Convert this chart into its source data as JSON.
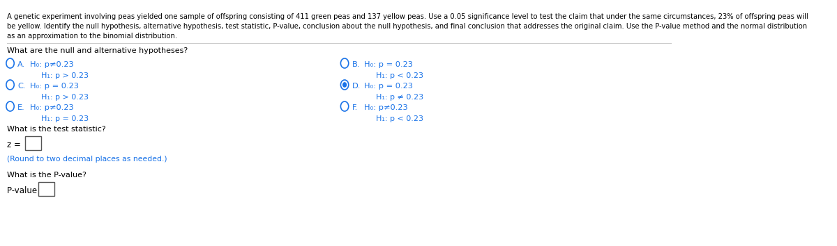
{
  "bg_color": "#ffffff",
  "text_color": "#000000",
  "blue_color": "#1a73e8",
  "paragraph": "A genetic experiment involving peas yielded one sample of offspring consisting of 411 green peas and 137 yellow peas. Use a 0.05 significance level to test the claim that under the same circumstances, 23% of offspring peas will\nbe yellow. Identify the null hypothesis, alternative hypothesis, test statistic, P-value, conclusion about the null hypothesis, and final conclusion that addresses the original claim. Use the P-value method and the normal distribution\nas an approximation to the binomial distribution.",
  "question1": "What are the null and alternative hypotheses?",
  "options": [
    {
      "label": "A.",
      "h0": "H₀: p≠0.23",
      "h1": "H₁: p > 0.23",
      "selected": false
    },
    {
      "label": "B.",
      "h0": "H₀: p = 0.23",
      "h1": "H₁: p < 0.23",
      "selected": false
    },
    {
      "label": "C.",
      "h0": "H₀: p = 0.23",
      "h1": "H₁: p > 0.23",
      "selected": false
    },
    {
      "label": "D.",
      "h0": "H₀: p = 0.23",
      "h1": "H₁: p ≠ 0.23",
      "selected": true
    },
    {
      "label": "E.",
      "h0": "H₀: p≠0.23",
      "h1": "H₁: p = 0.23",
      "selected": false
    },
    {
      "label": "F.",
      "h0": "H₀: p≠0.23",
      "h1": "H₁: p < 0.23",
      "selected": false
    }
  ],
  "question2": "What is the test statistic?",
  "z_label": "z =",
  "round_note": "(Round to two decimal places as needed.)",
  "question3": "What is the P-value?",
  "pvalue_label": "P-value ="
}
